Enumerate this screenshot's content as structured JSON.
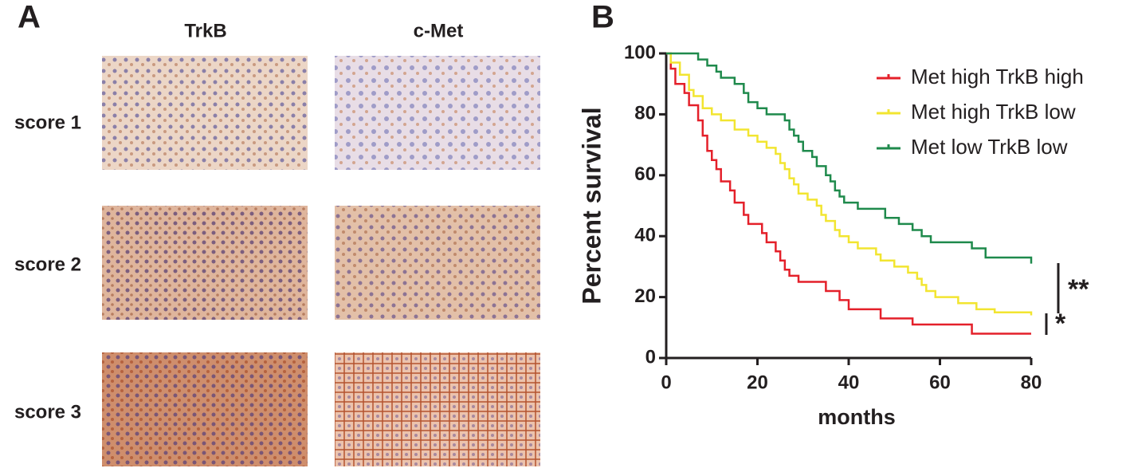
{
  "panel_a": {
    "label": "A",
    "columns": [
      "TrkB",
      "c-Met"
    ],
    "rows": [
      "score 1",
      "score 2",
      "score 3"
    ]
  },
  "chart_data": {
    "type": "step",
    "label": "B",
    "y_label": "Percent survival",
    "x_label": "months",
    "xlim": [
      0,
      80
    ],
    "xticks": [
      0,
      20,
      40,
      60,
      80
    ],
    "ylim": [
      0,
      100
    ],
    "yticks": [
      0,
      20,
      40,
      60,
      80,
      100
    ],
    "legend": "upper right",
    "annotations": [
      "**",
      "*"
    ],
    "series": [
      {
        "name": "Met high TrkB high",
        "color": "#e4202a",
        "x": [
          0,
          1,
          2,
          4,
          5,
          7,
          8,
          9,
          10,
          11,
          12,
          14,
          15,
          17,
          18,
          21,
          22,
          24,
          25,
          26,
          27,
          29,
          35,
          38,
          40,
          47,
          54,
          67,
          80
        ],
        "values": [
          100,
          95,
          90,
          87,
          83,
          78,
          73,
          68,
          65,
          62,
          58,
          55,
          51,
          47,
          44,
          41,
          38,
          35,
          32,
          29,
          27,
          25,
          22,
          19,
          16,
          13,
          11,
          8,
          8
        ]
      },
      {
        "name": "Met high TrkB low",
        "color": "#f2e530",
        "x": [
          0,
          1,
          3,
          5,
          6,
          8,
          10,
          12,
          15,
          18,
          20,
          22,
          24,
          25,
          26,
          27,
          28,
          29,
          31,
          33,
          34,
          35,
          37,
          38,
          40,
          42,
          46,
          47,
          50,
          53,
          55,
          56,
          57,
          59,
          64,
          68,
          72,
          80
        ],
        "values": [
          100,
          97,
          93,
          88,
          86,
          82,
          80,
          78,
          75,
          73,
          71,
          69,
          67,
          64,
          62,
          59,
          57,
          54,
          52,
          50,
          47,
          45,
          42,
          40,
          38,
          36,
          34,
          32,
          30,
          28,
          26,
          24,
          22,
          20,
          18,
          16,
          15,
          14
        ]
      },
      {
        "name": "Met low TrkB low",
        "color": "#1f8a4c",
        "x": [
          0,
          7,
          9,
          11,
          12,
          15,
          17,
          18,
          20,
          22,
          26,
          27,
          28,
          29,
          30,
          32,
          33,
          35,
          36,
          37,
          38,
          39,
          42,
          48,
          51,
          54,
          56,
          58,
          67,
          70,
          80
        ],
        "values": [
          100,
          98,
          96,
          94,
          92,
          90,
          87,
          84,
          82,
          80,
          78,
          75,
          73,
          71,
          68,
          66,
          63,
          60,
          58,
          55,
          53,
          51,
          49,
          46,
          44,
          42,
          40,
          38,
          36,
          33,
          31
        ]
      }
    ]
  }
}
